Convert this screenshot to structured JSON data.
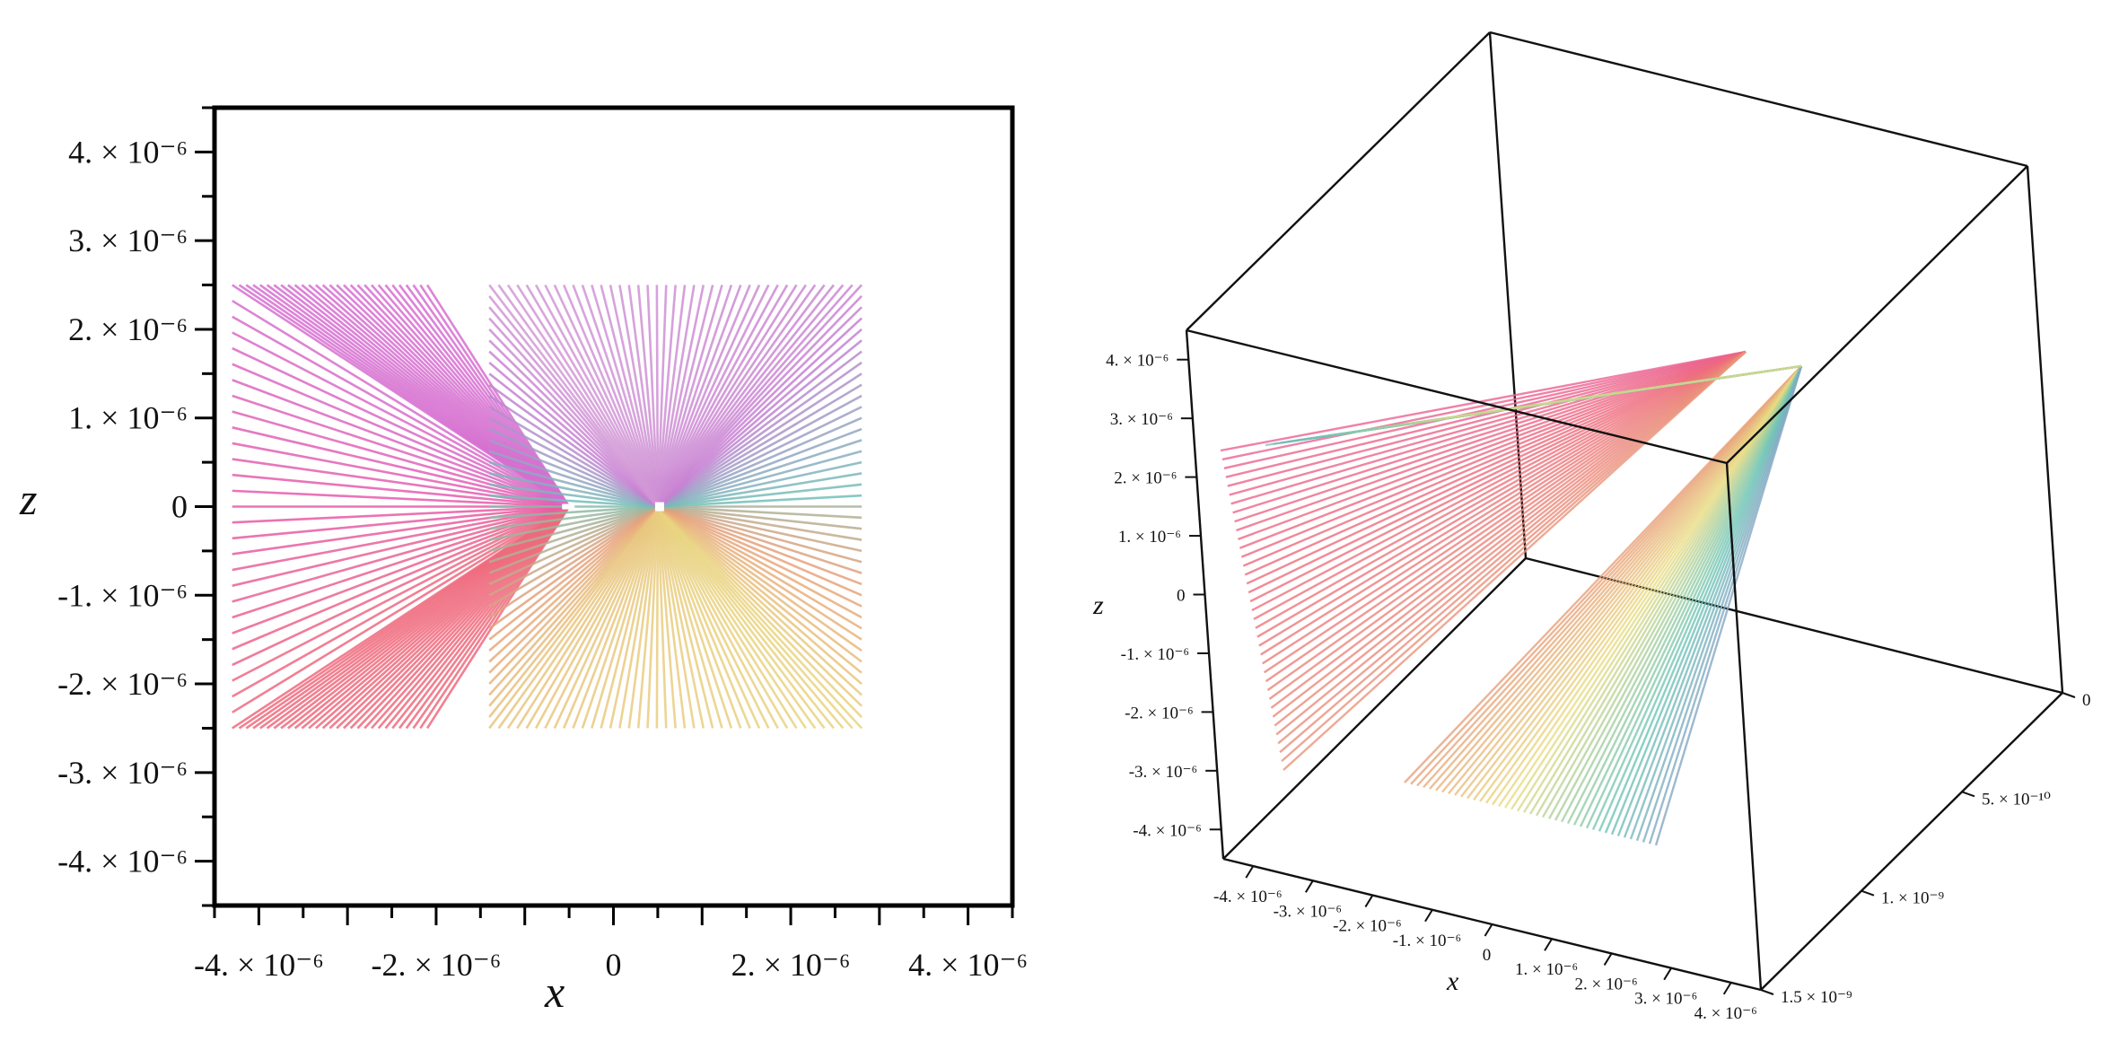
{
  "chart_data": [
    {
      "type": "line",
      "projection": "2d",
      "description_view": "x-z plane",
      "xlabel": "x",
      "ylabel": "z",
      "xlim": [
        -4.5e-06,
        4.5e-06
      ],
      "ylim": [
        -4.5e-06,
        4.5e-06
      ],
      "xticks": [
        -4e-06,
        -2e-06,
        0,
        2e-06,
        4e-06
      ],
      "xtick_labels": [
        "-4. × 10⁻⁶",
        "-2. × 10⁻⁶",
        "0",
        "2. × 10⁻⁶",
        "4. × 10⁻⁶"
      ],
      "yticks": [
        4e-06,
        3e-06,
        2e-06,
        1e-06,
        0,
        -1e-06,
        -2e-06,
        -3e-06,
        -4e-06
      ],
      "ytick_labels": [
        "4. × 10⁻⁶",
        "3. × 10⁻⁶",
        "2. × 10⁻⁶",
        "1. × 10⁻⁶",
        "0",
        "-1. × 10⁻⁶",
        "-2. × 10⁻⁶",
        "-3. × 10⁻⁶",
        "-4. × 10⁻⁶"
      ],
      "grid": false,
      "legend": "none",
      "series": [
        {
          "start_x_range": [
            -4.3e-06,
            -2.1e-06
          ],
          "start_z_range": [
            -2.5e-06,
            2.5e-06
          ],
          "converge_to": [
            -5e-07,
            0
          ],
          "colors": [
            "#e75aa8",
            "#ee6a7c",
            "#7fb3c8"
          ]
        },
        {
          "start_x_range": [
            -1.4e-06,
            2.8e-06
          ],
          "start_z_range": [
            -2.5e-06,
            2.5e-06
          ],
          "converge_to": [
            5e-07,
            0
          ],
          "colors": [
            "#c77fd3",
            "#e8a07a",
            "#6dc4b6",
            "#e9dc82"
          ]
        }
      ]
    },
    {
      "type": "line",
      "projection": "3d",
      "xlabel": "x",
      "zlabel": "z",
      "xtick_labels": [
        "-4. × 10⁻⁶",
        "-3. × 10⁻⁶",
        "-2. × 10⁻⁶",
        "-1. × 10⁻⁶",
        "0",
        "1. × 10⁻⁶",
        "2. × 10⁻⁶",
        "3. × 10⁻⁶",
        "4. × 10⁻⁶"
      ],
      "ytick_labels": [
        "0",
        "5. × 10⁻¹⁰",
        "1. × 10⁻⁹",
        "1.5 × 10⁻⁹"
      ],
      "ztick_labels": [
        "4. × 10⁻⁶",
        "3. × 10⁻⁶",
        "2. × 10⁻⁶",
        "1. × 10⁻⁶",
        "0",
        "-1. × 10⁻⁶",
        "-2. × 10⁻⁶",
        "-3. × 10⁻⁶",
        "-4. × 10⁻⁶"
      ],
      "xlim": [
        -4.5e-06,
        4.5e-06
      ],
      "ylim": [
        0,
        1.5e-09
      ],
      "zlim": [
        -4.5e-06,
        4.5e-06
      ],
      "grid": false,
      "legend": "none",
      "box": true
    }
  ]
}
